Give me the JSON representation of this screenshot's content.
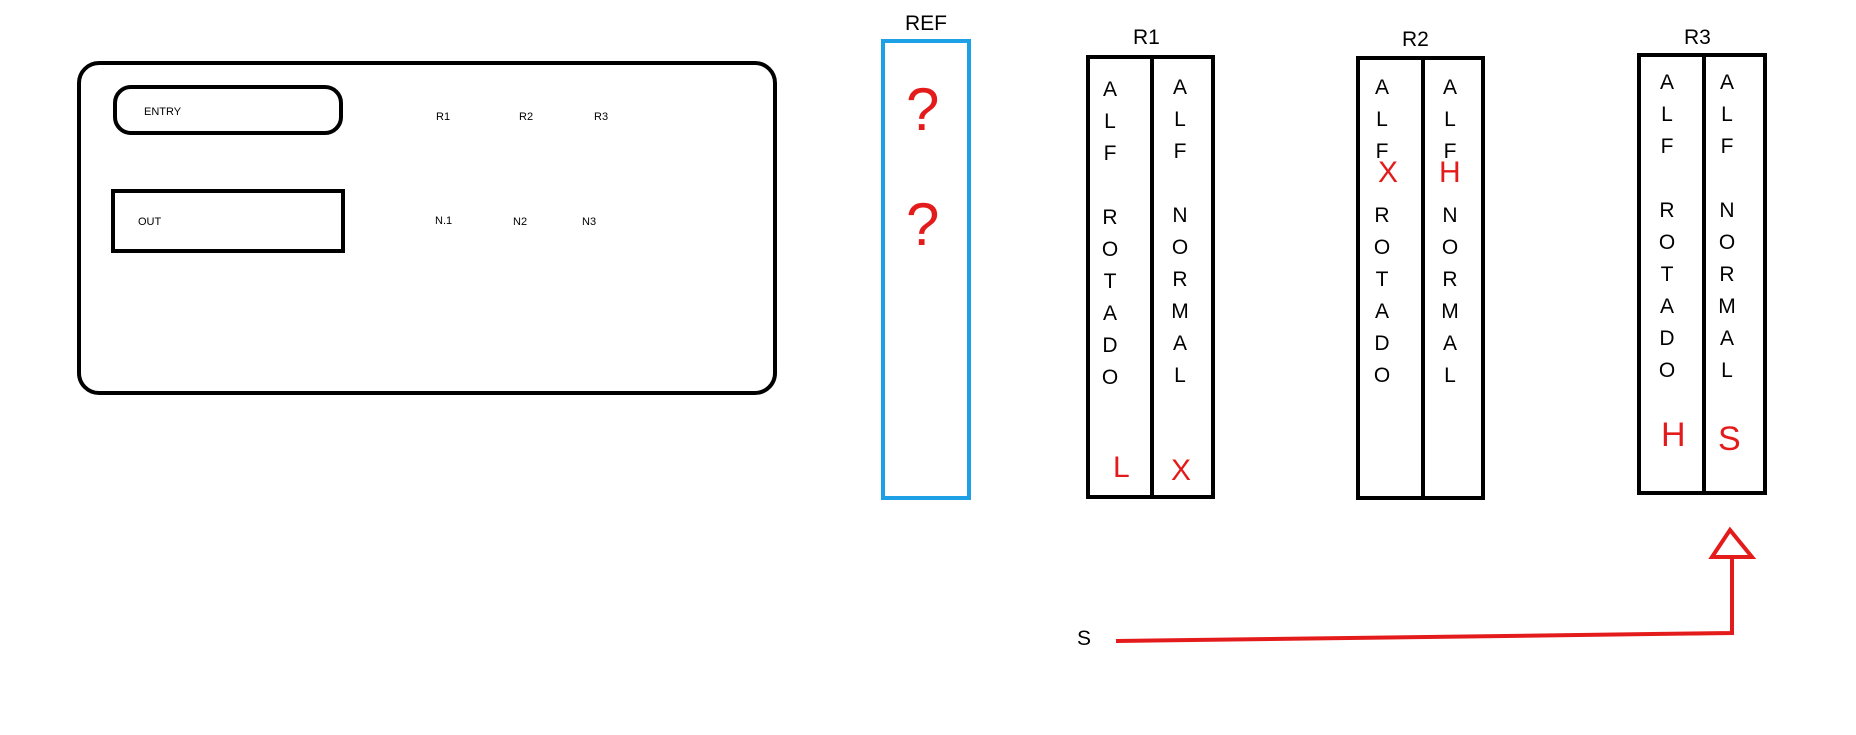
{
  "panel": {
    "entry_label": "ENTRY",
    "out_label": "OUT",
    "r_labels": [
      "R1",
      "R2",
      "R3"
    ],
    "n_labels": [
      "N.1",
      "N2",
      "N3"
    ]
  },
  "ref": {
    "label": "REF",
    "marks": [
      "?",
      "?"
    ],
    "border_color": "#1ea0e6"
  },
  "rotors": [
    {
      "label": "R1",
      "left_column": "ALF ROTADO",
      "right_column": "ALF NORMAL",
      "left_mark": "L",
      "right_mark": "X"
    },
    {
      "label": "R2",
      "left_column": "ALF ROTADO",
      "right_column": "ALF NORMAL",
      "left_mark": "X",
      "right_mark": "H"
    },
    {
      "label": "R3",
      "left_column": "ALF ROTADO",
      "right_column": "ALF NORMAL",
      "left_mark": "H",
      "right_mark": "S"
    }
  ],
  "arrow": {
    "start_label": "S",
    "color": "#e41b1b"
  }
}
